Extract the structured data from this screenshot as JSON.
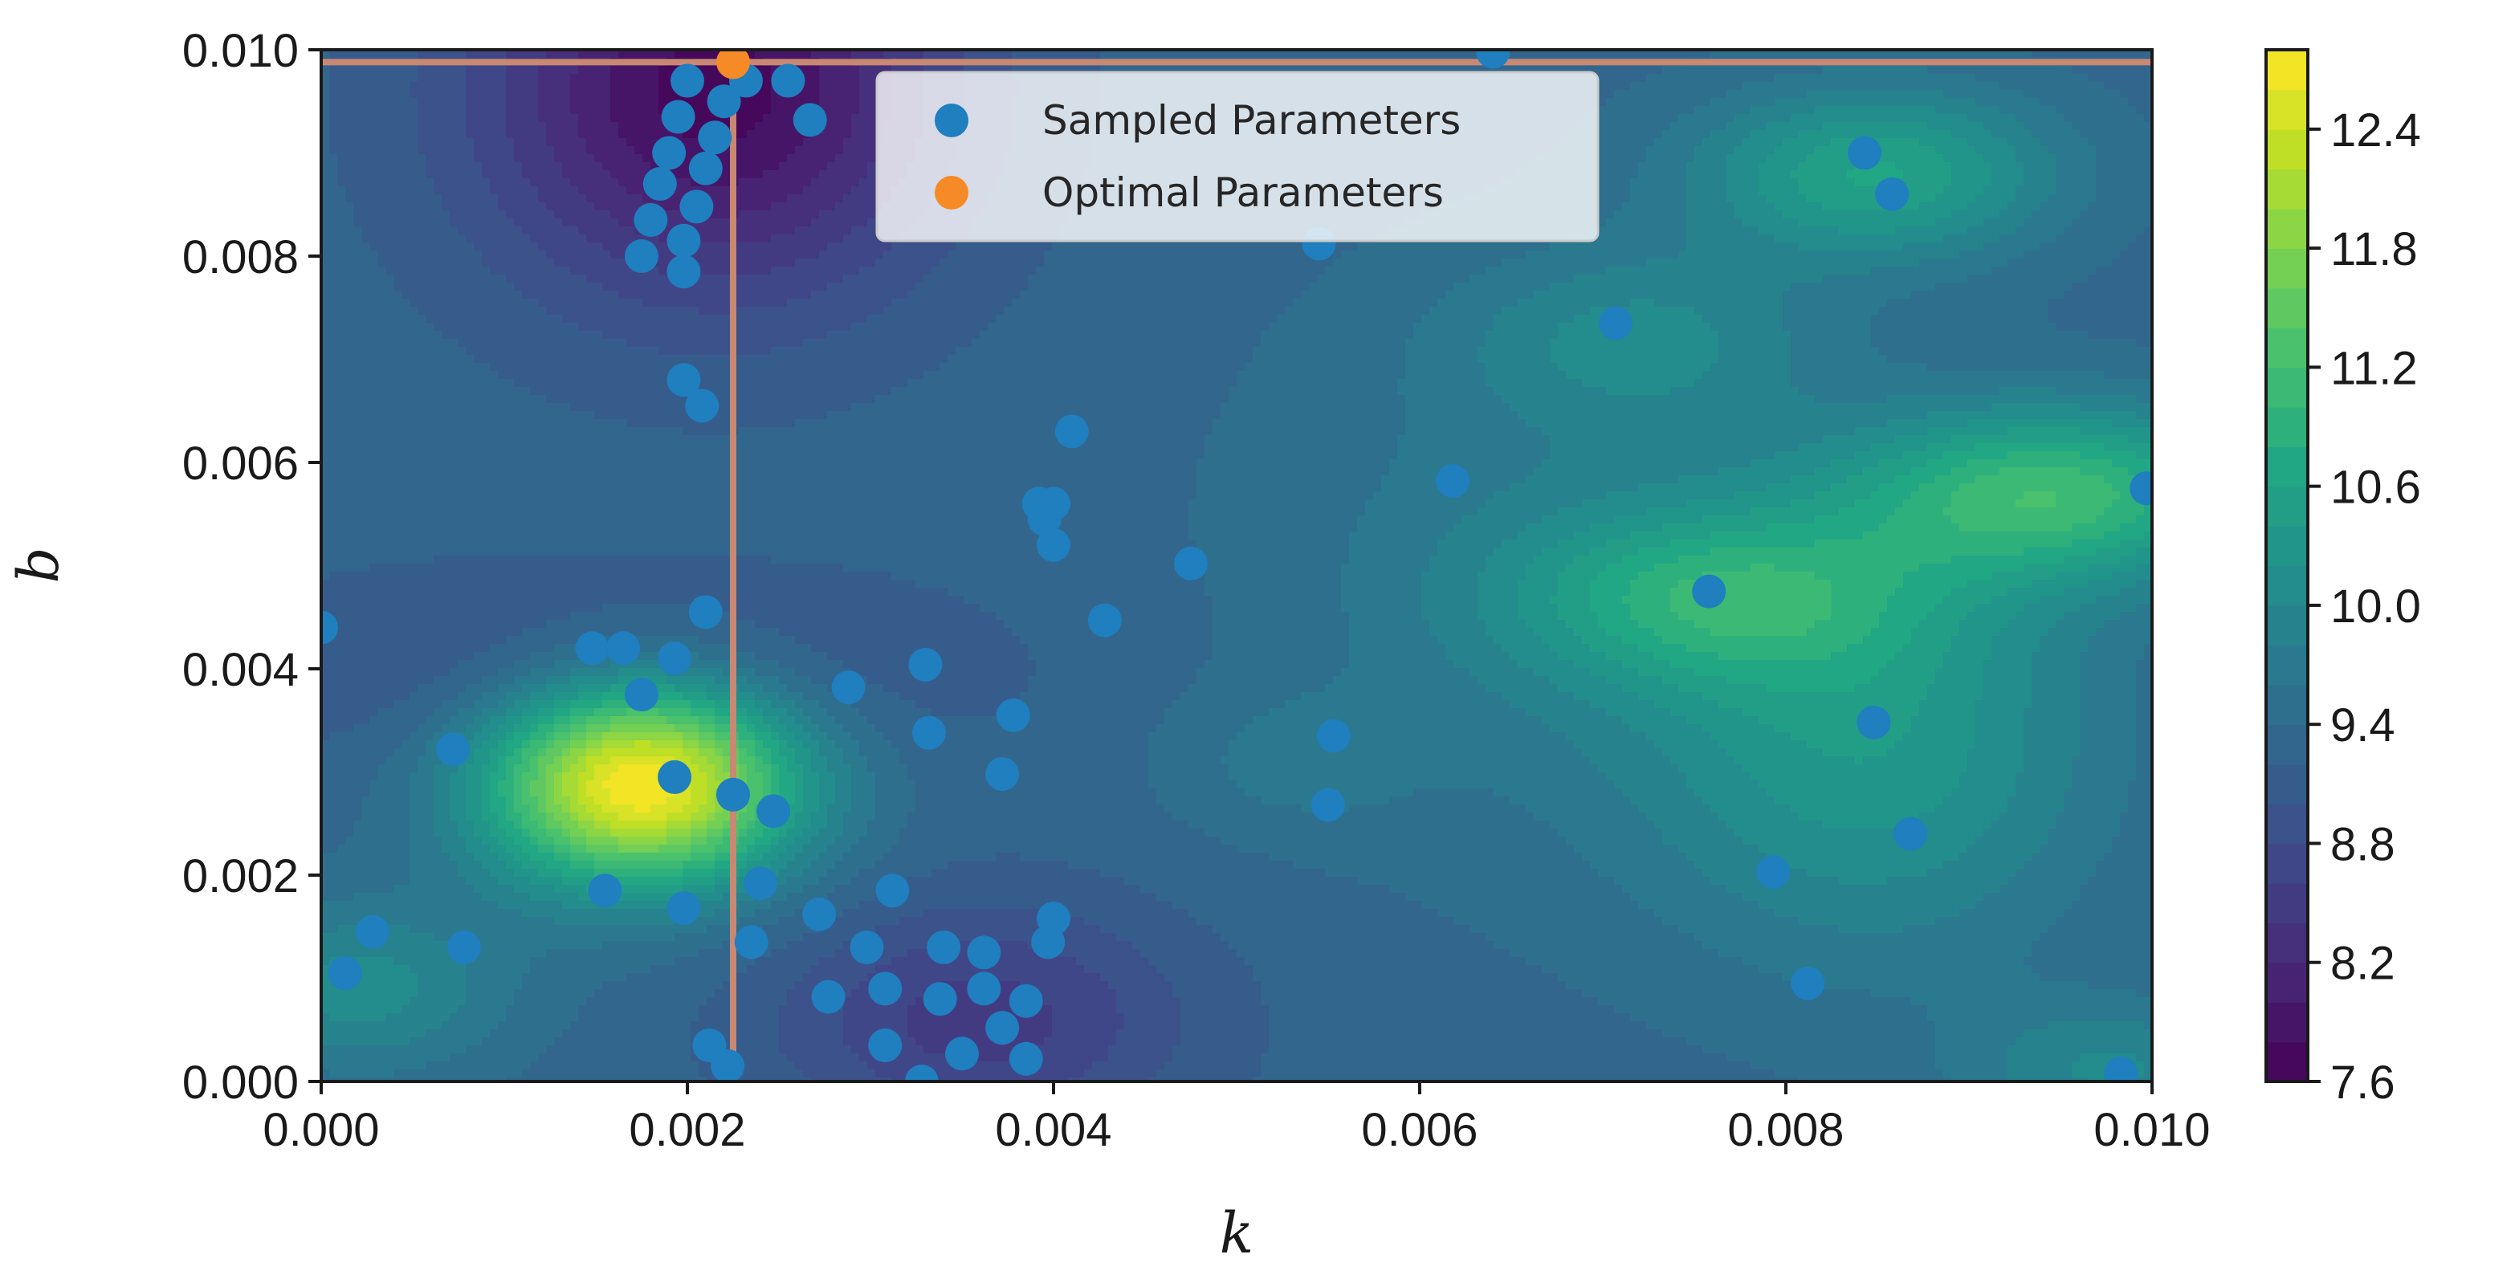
{
  "chart_data": {
    "type": "scatter",
    "subtype": "filled-contour with scatter overlay",
    "title": "",
    "xlabel": "k",
    "ylabel": "b",
    "xlim": [
      0.0,
      0.01
    ],
    "ylim": [
      0.0,
      0.01
    ],
    "xticks": [
      "0.000",
      "0.002",
      "0.004",
      "0.006",
      "0.008",
      "0.010"
    ],
    "yticks": [
      "0.000",
      "0.002",
      "0.004",
      "0.006",
      "0.008",
      "0.010"
    ],
    "xtick_values": [
      0.0,
      0.002,
      0.004,
      0.006,
      0.008,
      0.01
    ],
    "ytick_values": [
      0.0,
      0.002,
      0.004,
      0.006,
      0.008,
      0.01
    ],
    "colorbar": {
      "colormap": "viridis",
      "range": [
        7.6,
        12.8
      ],
      "ticks": [
        "7.6",
        "8.2",
        "8.8",
        "9.4",
        "10.0",
        "10.6",
        "11.2",
        "11.8",
        "12.4"
      ],
      "tick_values": [
        7.6,
        8.2,
        8.8,
        9.4,
        10.0,
        10.6,
        11.2,
        11.8,
        12.4
      ]
    },
    "background_level": 9.3,
    "contour_features": [
      {
        "k": 0.00175,
        "b": 0.0029,
        "value": 12.9,
        "sk": 0.0006,
        "sb": 0.0007
      },
      {
        "k": 0.00215,
        "b": 0.0096,
        "value": 7.7,
        "sk": 0.0009,
        "sb": 0.0014
      },
      {
        "k": 0.0036,
        "b": 0.0006,
        "value": 8.5,
        "sk": 0.0008,
        "sb": 0.0008
      },
      {
        "k": 0.0016,
        "b": 0.004,
        "value": 8.9,
        "sk": 0.0015,
        "sb": 0.0007
      },
      {
        "k": 0.0002,
        "b": 0.0009,
        "value": 10.1,
        "sk": 0.0006,
        "sb": 0.0006
      },
      {
        "k": 0.0095,
        "b": 0.0057,
        "value": 11.0,
        "sk": 0.0008,
        "sb": 0.0006
      },
      {
        "k": 0.0085,
        "b": 0.0088,
        "value": 10.6,
        "sk": 0.0007,
        "sb": 0.0006
      },
      {
        "k": 0.0076,
        "b": 0.0047,
        "value": 10.4,
        "sk": 0.0008,
        "sb": 0.0006
      },
      {
        "k": 0.0085,
        "b": 0.0033,
        "value": 10.3,
        "sk": 0.0009,
        "sb": 0.0015
      },
      {
        "k": 0.0072,
        "b": 0.0072,
        "value": 9.9,
        "sk": 0.0007,
        "sb": 0.0006
      },
      {
        "k": 0.0067,
        "b": 0.005,
        "value": 9.7,
        "sk": 0.0012,
        "sb": 0.002
      },
      {
        "k": 0.0098,
        "b": 0.0001,
        "value": 10.0,
        "sk": 0.0006,
        "sb": 0.0005
      },
      {
        "k": 0.0053,
        "b": 0.0031,
        "value": 9.6,
        "sk": 0.0005,
        "sb": 0.0005
      }
    ],
    "series": [
      {
        "name": "Sampled Parameters",
        "color": "#1f7fbf",
        "points": [
          [
            0.0,
            0.0044
          ],
          [
            0.00013,
            0.00105
          ],
          [
            0.00028,
            0.00145
          ],
          [
            0.00072,
            0.00322
          ],
          [
            0.00078,
            0.0013
          ],
          [
            0.00148,
            0.0042
          ],
          [
            0.00155,
            0.00185
          ],
          [
            0.00165,
            0.0042
          ],
          [
            0.00175,
            0.00375
          ],
          [
            0.00193,
            0.00295
          ],
          [
            0.00193,
            0.0041
          ],
          [
            0.00198,
            0.00168
          ],
          [
            0.0021,
            0.00455
          ],
          [
            0.00212,
            0.00035
          ],
          [
            0.00222,
            0.00015
          ],
          [
            0.00225,
            0.00278
          ],
          [
            0.00235,
            0.00135
          ],
          [
            0.0024,
            0.00192
          ],
          [
            0.00247,
            0.00262
          ],
          [
            0.00272,
            0.00162
          ],
          [
            0.00277,
            0.00082
          ],
          [
            0.00288,
            0.00382
          ],
          [
            0.00298,
            0.0013
          ],
          [
            0.00308,
            0.00035
          ],
          [
            0.00308,
            0.0009
          ],
          [
            0.00312,
            0.00185
          ],
          [
            0.00328,
            0.0
          ],
          [
            0.0033,
            0.00404
          ],
          [
            0.00332,
            0.00338
          ],
          [
            0.00338,
            0.0008
          ],
          [
            0.0034,
            0.0013
          ],
          [
            0.0035,
            0.00027
          ],
          [
            0.00362,
            0.00125
          ],
          [
            0.00362,
            0.0009
          ],
          [
            0.00372,
            0.00298
          ],
          [
            0.00372,
            0.00052
          ],
          [
            0.00378,
            0.00355
          ],
          [
            0.00385,
            0.00022
          ],
          [
            0.00385,
            0.00078
          ],
          [
            0.00397,
            0.00135
          ],
          [
            0.004,
            0.00158
          ],
          [
            0.004,
            0.0052
          ],
          [
            0.00392,
            0.0056
          ],
          [
            0.00395,
            0.00545
          ],
          [
            0.004,
            0.0056
          ],
          [
            0.0041,
            0.0063
          ],
          [
            0.00428,
            0.00447
          ],
          [
            0.00475,
            0.00502
          ],
          [
            0.00545,
            0.00812
          ],
          [
            0.0055,
            0.00268
          ],
          [
            0.00553,
            0.00335
          ],
          [
            0.00618,
            0.00582
          ],
          [
            0.0064,
            0.00998
          ],
          [
            0.00707,
            0.00735
          ],
          [
            0.00758,
            0.00475
          ],
          [
            0.00793,
            0.00203
          ],
          [
            0.00812,
            0.00095
          ],
          [
            0.00843,
            0.009
          ],
          [
            0.00848,
            0.00348
          ],
          [
            0.00858,
            0.0086
          ],
          [
            0.00868,
            0.0024
          ],
          [
            0.00983,
            8e-05
          ],
          [
            0.00997,
            0.00575
          ],
          [
            0.00175,
            0.008
          ],
          [
            0.0018,
            0.00835
          ],
          [
            0.00185,
            0.0087
          ],
          [
            0.0019,
            0.009
          ],
          [
            0.00195,
            0.00935
          ],
          [
            0.00198,
            0.00815
          ],
          [
            0.00198,
            0.00785
          ],
          [
            0.002,
            0.0097
          ],
          [
            0.00205,
            0.00848
          ],
          [
            0.0021,
            0.00885
          ],
          [
            0.00215,
            0.00915
          ],
          [
            0.0022,
            0.0095
          ],
          [
            0.00232,
            0.0097
          ],
          [
            0.00255,
            0.0097
          ],
          [
            0.00267,
            0.00932
          ],
          [
            0.00198,
            0.0068
          ],
          [
            0.00208,
            0.00655
          ]
        ]
      },
      {
        "name": "Optimal Parameters",
        "color": "#f58a26",
        "points": [
          [
            0.00225,
            0.00988
          ]
        ]
      }
    ],
    "crosshair": {
      "k": 0.00225,
      "b": 0.00988,
      "color": "#c98872"
    },
    "legend": {
      "position": "top-center"
    }
  }
}
